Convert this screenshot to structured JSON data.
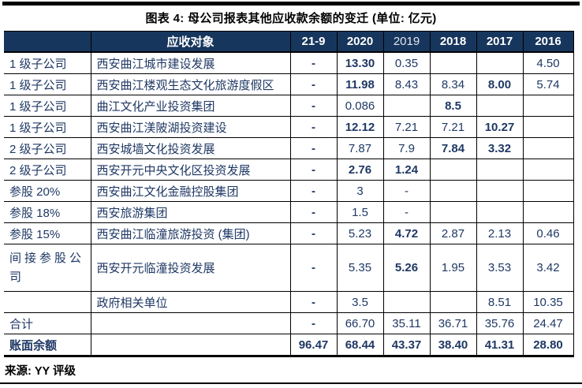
{
  "title": "图表 4: 母公司报表其他应收款余额的变迁 (单位: 亿元)",
  "source": "来源: YY 评级",
  "colors": {
    "header_bg": "#17365d",
    "header_text": "#ffffff",
    "body_text": "#1f3864",
    "border": "#000000"
  },
  "chart_data": {
    "type": "table",
    "title": "图表 4: 母公司报表其他应收款余额的变迁 (单位: 亿元)",
    "headers": [
      {
        "label": "",
        "bold": true
      },
      {
        "label": "应收对象",
        "bold": true
      },
      {
        "label": "21-9",
        "bold": true
      },
      {
        "label": "2020",
        "bold": true
      },
      {
        "label": "2019",
        "bold": false
      },
      {
        "label": "2018",
        "bold": true
      },
      {
        "label": "2017",
        "bold": true
      },
      {
        "label": "2016",
        "bold": true
      }
    ],
    "rows": [
      {
        "category": "1 级子公司",
        "name": "西安曲江城市建设发展",
        "values": [
          "-",
          "13.30",
          "0.35",
          "",
          "",
          "4.50"
        ],
        "bold": [
          true,
          true,
          false,
          false,
          false,
          false
        ],
        "tall": false
      },
      {
        "category": "1 级子公司",
        "name": "西安曲江楼观生态文化旅游度假区",
        "values": [
          "-",
          "11.98",
          "8.43",
          "8.34",
          "8.00",
          "5.74"
        ],
        "bold": [
          true,
          true,
          false,
          false,
          true,
          false
        ],
        "tall": false
      },
      {
        "category": "1 级子公司",
        "name": "曲江文化产业投资集团",
        "values": [
          "-",
          "0.086",
          "",
          "8.5",
          "",
          ""
        ],
        "bold": [
          true,
          false,
          false,
          true,
          false,
          false
        ],
        "tall": false
      },
      {
        "category": "1 级子公司",
        "name": "西安曲江渼陂湖投资建设",
        "values": [
          "-",
          "12.12",
          "7.21",
          "7.21",
          "10.27",
          ""
        ],
        "bold": [
          true,
          true,
          false,
          false,
          true,
          false
        ],
        "tall": false
      },
      {
        "category": "2 级子公司",
        "name": "西安城墙文化投资发展",
        "values": [
          "-",
          "7.87",
          "7.9",
          "7.84",
          "3.32",
          ""
        ],
        "bold": [
          true,
          false,
          false,
          true,
          true,
          false
        ],
        "tall": false
      },
      {
        "category": "2 级子公司",
        "name": "西安开元中央文化区投资发展",
        "values": [
          "-",
          "2.76",
          "1.24",
          "",
          "",
          ""
        ],
        "bold": [
          true,
          true,
          true,
          false,
          false,
          false
        ],
        "tall": false
      },
      {
        "category": "参股 20%",
        "name": "西安曲江文化金融控股集团",
        "values": [
          "-",
          "3",
          "-",
          "",
          "",
          ""
        ],
        "bold": [
          true,
          false,
          false,
          false,
          false,
          false
        ],
        "tall": false
      },
      {
        "category": "参股 18%",
        "name": "西安旅游集团",
        "values": [
          "-",
          "1.5",
          "-",
          "",
          "",
          ""
        ],
        "bold": [
          true,
          false,
          false,
          false,
          false,
          false
        ],
        "tall": false
      },
      {
        "category": "参股 15%",
        "name": "西安曲江临潼旅游投资 (集团)",
        "values": [
          "-",
          "5.23",
          "4.72",
          "2.87",
          "2.13",
          "0.46"
        ],
        "bold": [
          true,
          false,
          true,
          false,
          false,
          false
        ],
        "tall": false
      },
      {
        "category": "间接参股公司",
        "name": "西安开元临潼投资发展",
        "values": [
          "-",
          "5.35",
          "5.26",
          "1.95",
          "3.53",
          "3.42"
        ],
        "bold": [
          true,
          false,
          true,
          false,
          false,
          false
        ],
        "tall": true
      },
      {
        "category": "",
        "name": "政府相关单位",
        "values": [
          "-",
          "3.5",
          "",
          "",
          "8.51",
          "10.35"
        ],
        "bold": [
          true,
          false,
          false,
          false,
          false,
          false
        ],
        "tall": false
      },
      {
        "category": "合计",
        "name": "",
        "values": [
          "-",
          "66.70",
          "35.11",
          "36.71",
          "35.76",
          "24.47"
        ],
        "bold": [
          true,
          false,
          false,
          false,
          false,
          false
        ],
        "tall": false
      },
      {
        "category": "账面余额",
        "name": "",
        "values": [
          "96.47",
          "68.44",
          "43.37",
          "38.40",
          "41.31",
          "28.80"
        ],
        "bold": [
          true,
          true,
          true,
          true,
          true,
          true
        ],
        "tall": false
      }
    ]
  }
}
